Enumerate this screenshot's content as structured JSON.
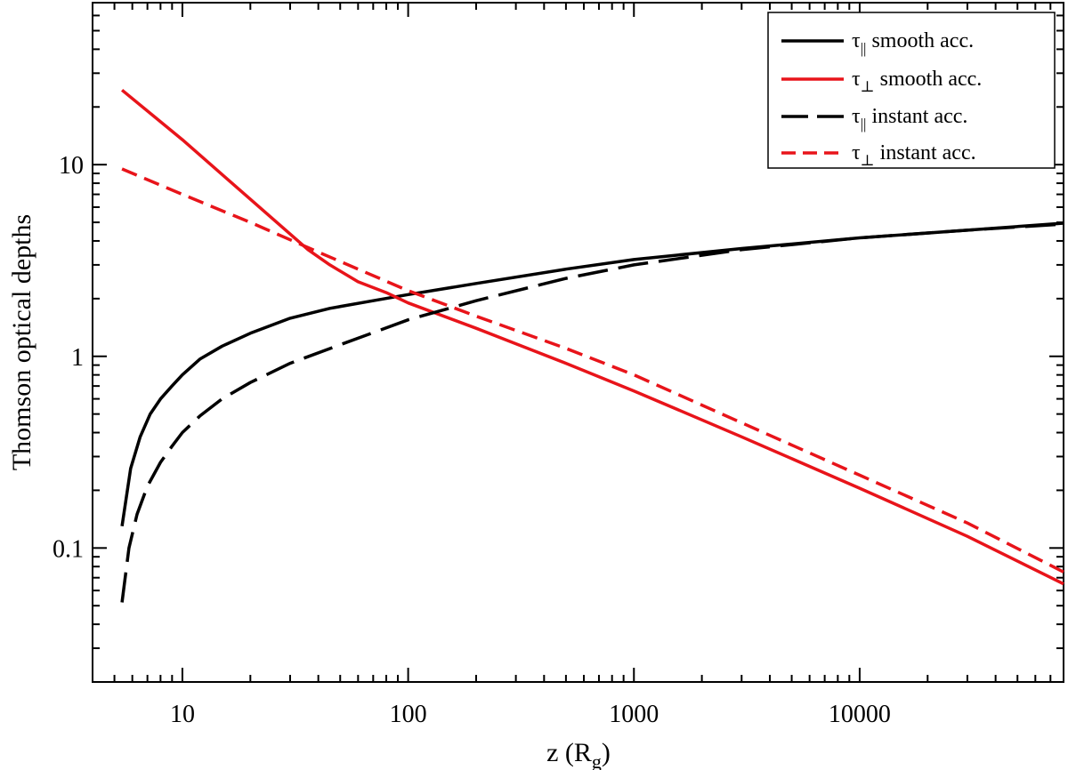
{
  "chart_data": {
    "type": "line",
    "xlabel": "z (R",
    "xlabel_sub": "g",
    "xlabel_close": ")",
    "ylabel": "Thomson optical depths",
    "xscale": "log",
    "yscale": "log",
    "xlim": [
      4,
      80000
    ],
    "ylim": [
      0.02,
      70
    ],
    "grid": false,
    "legend_position": "top-right",
    "xticks": [
      {
        "value": 10,
        "label": "10"
      },
      {
        "value": 100,
        "label": "100"
      },
      {
        "value": 1000,
        "label": "1000"
      },
      {
        "value": 10000,
        "label": "10000"
      }
    ],
    "yticks": [
      {
        "value": 0.1,
        "label": "0.1"
      },
      {
        "value": 1,
        "label": "1"
      },
      {
        "value": 10,
        "label": "10"
      }
    ],
    "series": [
      {
        "name": "smooth acc.",
        "symbol": "τ",
        "symbol_sub": "||",
        "color": "#000000",
        "style": "solid",
        "x": [
          5.4,
          5.9,
          6.5,
          7.2,
          8,
          9,
          10,
          12,
          15,
          20,
          30,
          45,
          70,
          100,
          200,
          500,
          1000,
          3000,
          10000,
          30000,
          80000
        ],
        "y": [
          0.13,
          0.26,
          0.38,
          0.5,
          0.6,
          0.7,
          0.8,
          0.97,
          1.13,
          1.32,
          1.58,
          1.78,
          1.95,
          2.1,
          2.4,
          2.85,
          3.2,
          3.65,
          4.15,
          4.55,
          4.95
        ]
      },
      {
        "name": "smooth acc.",
        "symbol": "τ",
        "symbol_sub": "⊥",
        "color": "#e8141a",
        "style": "solid",
        "x": [
          5.4,
          10,
          20,
          36,
          45,
          60,
          80,
          100,
          200,
          500,
          1000,
          3000,
          10000,
          30000,
          80000
        ],
        "y": [
          24.5,
          13.5,
          6.6,
          3.6,
          3.0,
          2.45,
          2.15,
          1.9,
          1.4,
          0.92,
          0.66,
          0.38,
          0.205,
          0.115,
          0.065
        ]
      },
      {
        "name": "instant acc.",
        "symbol": "τ",
        "symbol_sub": "||",
        "color": "#000000",
        "style": "long-dash",
        "x": [
          5.4,
          5.8,
          6.3,
          7,
          8,
          9,
          10,
          12,
          15,
          20,
          30,
          50,
          100,
          200,
          500,
          1000,
          3000,
          10000,
          30000,
          80000
        ],
        "y": [
          0.052,
          0.1,
          0.15,
          0.21,
          0.28,
          0.34,
          0.4,
          0.49,
          0.6,
          0.73,
          0.92,
          1.15,
          1.55,
          1.95,
          2.55,
          3.0,
          3.6,
          4.15,
          4.55,
          4.9
        ]
      },
      {
        "name": "instant acc.",
        "symbol": "τ",
        "symbol_sub": "⊥",
        "color": "#e8141a",
        "style": "dash",
        "x": [
          5.4,
          10,
          20,
          40,
          100,
          200,
          500,
          1000,
          3000,
          10000,
          30000,
          80000
        ],
        "y": [
          9.5,
          7.0,
          5.0,
          3.5,
          2.2,
          1.62,
          1.1,
          0.8,
          0.45,
          0.24,
          0.135,
          0.075
        ]
      }
    ]
  }
}
